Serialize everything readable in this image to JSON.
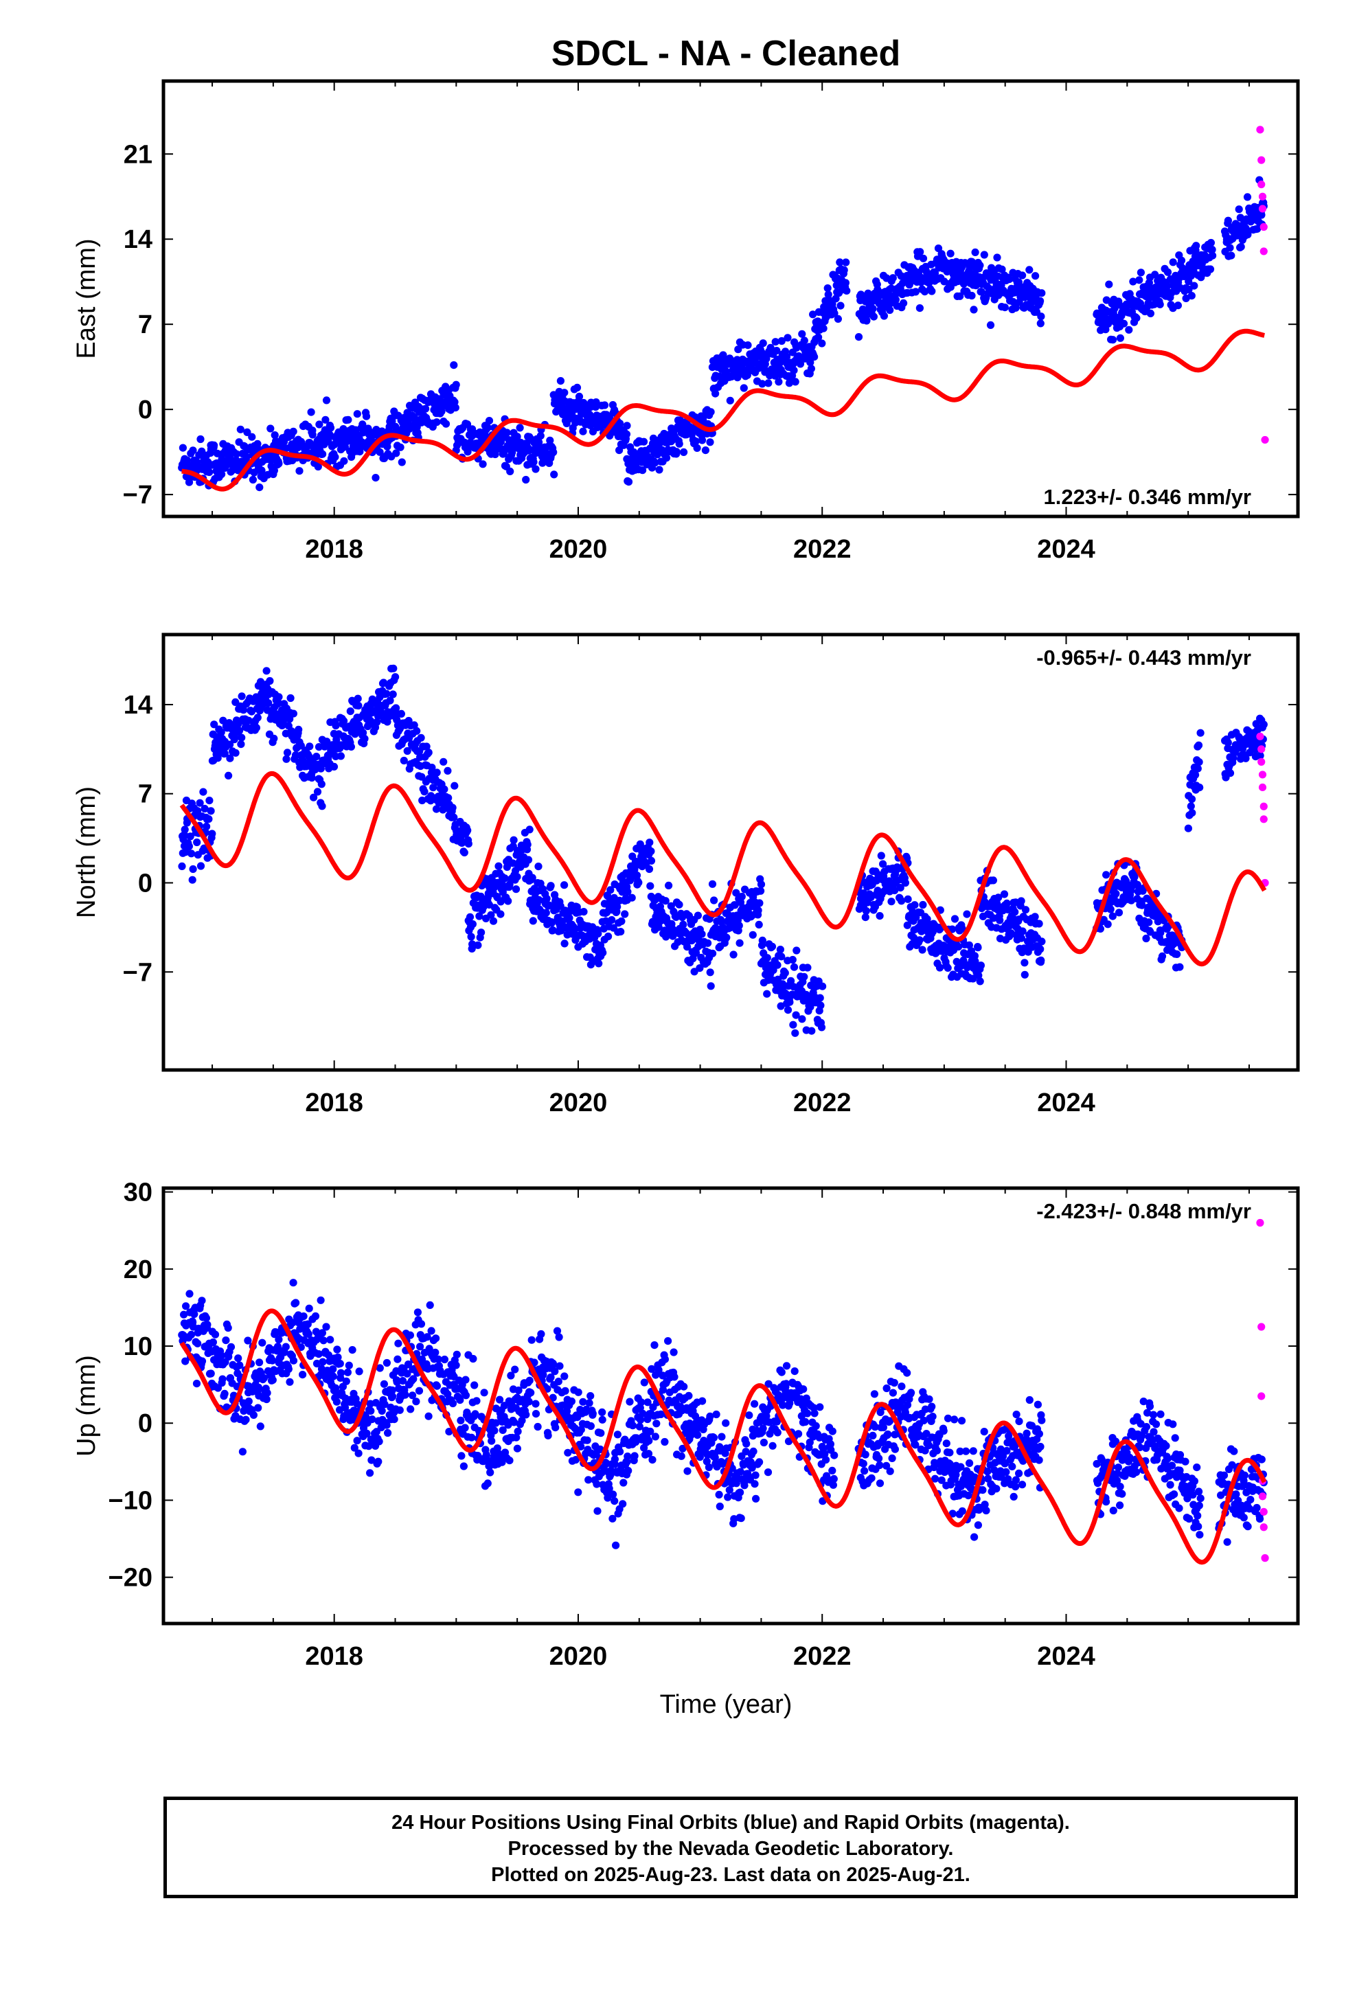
{
  "title": "SDCL  - NA - Cleaned",
  "xlabel": "Time (year)",
  "caption": {
    "line1": "24 Hour Positions Using Final Orbits (blue) and Rapid Orbits (magenta).",
    "line2": "Processed by the Nevada Geodetic Laboratory.",
    "line3": "Plotted on 2025-Aug-23. Last data on 2025-Aug-21."
  },
  "colors": {
    "final": "#0000ff",
    "rapid": "#ff00ff",
    "model": "#ff0000"
  },
  "chart_data": [
    {
      "type": "scatter",
      "name": "east",
      "ylabel": "East (mm)",
      "rate_label": "1.223+/- 0.346 mm/yr",
      "rate_position": "bottom-right",
      "xlim": [
        2016.6,
        2025.9
      ],
      "ylim": [
        -8.8,
        27.0
      ],
      "xticks": [
        2018,
        2020,
        2022,
        2024
      ],
      "yticks": [
        -7,
        0,
        7,
        14,
        21
      ],
      "model": {
        "rate": 1.223,
        "offset": 0.0,
        "t0": 2021.2,
        "annual": {
          "amp": 1.2,
          "phase": 0.0
        },
        "semiannual": {
          "amp": 0.4,
          "phase": 0.6
        }
      },
      "final_orbits_segments": [
        {
          "t": [
            2016.75,
            2017.5
          ],
          "y": [
            -4.5,
            -4.0
          ],
          "scatter": 1.6
        },
        {
          "t": [
            2017.5,
            2018.3
          ],
          "y": [
            -3.5,
            -2.0
          ],
          "scatter": 1.5
        },
        {
          "t": [
            2018.3,
            2019.0
          ],
          "y": [
            -3.0,
            1.0
          ],
          "scatter": 1.4
        },
        {
          "t": [
            2019.0,
            2019.8
          ],
          "y": [
            -2.5,
            -3.5
          ],
          "scatter": 1.5
        },
        {
          "t": [
            2019.8,
            2020.4
          ],
          "y": [
            0.5,
            -2.0
          ],
          "scatter": 1.3
        },
        {
          "t": [
            2020.4,
            2021.1
          ],
          "y": [
            -4.5,
            -1.0
          ],
          "scatter": 1.4
        },
        {
          "t": [
            2021.1,
            2021.9
          ],
          "y": [
            3.0,
            4.5
          ],
          "scatter": 1.5
        },
        {
          "t": [
            2021.9,
            2022.2
          ],
          "y": [
            5.0,
            11.5
          ],
          "scatter": 1.8
        },
        {
          "t": [
            2022.3,
            2023.0
          ],
          "y": [
            8.0,
            12.0
          ],
          "scatter": 1.4
        },
        {
          "t": [
            2023.0,
            2023.8
          ],
          "y": [
            11.5,
            9.0
          ],
          "scatter": 1.5
        },
        {
          "t": [
            2024.25,
            2024.8
          ],
          "y": [
            7.0,
            10.0
          ],
          "scatter": 1.4
        },
        {
          "t": [
            2024.8,
            2025.2
          ],
          "y": [
            10.0,
            13.0
          ],
          "scatter": 1.5
        },
        {
          "t": [
            2025.3,
            2025.62
          ],
          "y": [
            14.0,
            16.5
          ],
          "scatter": 1.3
        }
      ],
      "rapid_orbits": [
        {
          "t": 2025.59,
          "y": 23.0
        },
        {
          "t": 2025.6,
          "y": 20.5
        },
        {
          "t": 2025.6,
          "y": 18.5
        },
        {
          "t": 2025.61,
          "y": 17.5
        },
        {
          "t": 2025.61,
          "y": 16.5
        },
        {
          "t": 2025.62,
          "y": 15.0
        },
        {
          "t": 2025.62,
          "y": 13.0
        },
        {
          "t": 2025.63,
          "y": -2.5
        }
      ]
    },
    {
      "type": "scatter",
      "name": "north",
      "ylabel": "North (mm)",
      "rate_label": "-0.965+/- 0.443 mm/yr",
      "rate_position": "top-right",
      "xlim": [
        2016.6,
        2025.9
      ],
      "ylim": [
        -14.7,
        19.5
      ],
      "xticks": [
        2018,
        2020,
        2022,
        2024
      ],
      "yticks": [
        -7,
        0,
        7,
        14
      ],
      "model": {
        "rate": -0.965,
        "offset": 1.2,
        "t0": 2021.2,
        "annual": {
          "amp": 3.5,
          "phase": 0.0
        },
        "semiannual": {
          "amp": 0.8,
          "phase": 0.0
        }
      },
      "final_orbits_segments": [
        {
          "t": [
            2016.75,
            2017.0
          ],
          "y": [
            4.0,
            4.0
          ],
          "scatter": 2.0
        },
        {
          "t": [
            2017.0,
            2017.4
          ],
          "y": [
            10.5,
            14.0
          ],
          "scatter": 1.8
        },
        {
          "t": [
            2017.4,
            2017.9
          ],
          "y": [
            15.0,
            8.0
          ],
          "scatter": 1.7
        },
        {
          "t": [
            2017.9,
            2018.5
          ],
          "y": [
            10.0,
            15.0
          ],
          "scatter": 1.7
        },
        {
          "t": [
            2018.5,
            2019.1
          ],
          "y": [
            13.0,
            3.0
          ],
          "scatter": 1.8
        },
        {
          "t": [
            2019.1,
            2019.6
          ],
          "y": [
            -3.0,
            2.5
          ],
          "scatter": 1.8
        },
        {
          "t": [
            2019.6,
            2020.2
          ],
          "y": [
            -1.0,
            -5.0
          ],
          "scatter": 1.8
        },
        {
          "t": [
            2020.2,
            2020.6
          ],
          "y": [
            -3.0,
            2.5
          ],
          "scatter": 1.8
        },
        {
          "t": [
            2020.6,
            2021.1
          ],
          "y": [
            -2.0,
            -5.5
          ],
          "scatter": 1.7
        },
        {
          "t": [
            2021.1,
            2021.5
          ],
          "y": [
            -4.0,
            -1.5
          ],
          "scatter": 1.7
        },
        {
          "t": [
            2021.5,
            2022.0
          ],
          "y": [
            -6.0,
            -10.0
          ],
          "scatter": 2.0
        },
        {
          "t": [
            2022.3,
            2022.7
          ],
          "y": [
            -1.0,
            1.0
          ],
          "scatter": 1.8
        },
        {
          "t": [
            2022.7,
            2023.3
          ],
          "y": [
            -3.0,
            -6.5
          ],
          "scatter": 1.7
        },
        {
          "t": [
            2023.3,
            2023.8
          ],
          "y": [
            -1.0,
            -5.0
          ],
          "scatter": 1.8
        },
        {
          "t": [
            2024.25,
            2024.6
          ],
          "y": [
            -2.0,
            0.5
          ],
          "scatter": 1.6
        },
        {
          "t": [
            2024.6,
            2024.95
          ],
          "y": [
            -2.0,
            -5.0
          ],
          "scatter": 1.6
        },
        {
          "t": [
            2025.0,
            2025.1
          ],
          "y": [
            6.0,
            10.0
          ],
          "scatter": 2.0
        },
        {
          "t": [
            2025.3,
            2025.62
          ],
          "y": [
            10.0,
            11.5
          ],
          "scatter": 1.3
        }
      ],
      "rapid_orbits": [
        {
          "t": 2025.59,
          "y": 11.5
        },
        {
          "t": 2025.6,
          "y": 10.5
        },
        {
          "t": 2025.6,
          "y": 9.5
        },
        {
          "t": 2025.61,
          "y": 8.5
        },
        {
          "t": 2025.61,
          "y": 7.5
        },
        {
          "t": 2025.62,
          "y": 6.0
        },
        {
          "t": 2025.62,
          "y": 5.0
        },
        {
          "t": 2025.63,
          "y": 0.0
        }
      ]
    },
    {
      "type": "scatter",
      "name": "up",
      "ylabel": "Up (mm)",
      "rate_label": "-2.423+/- 0.848 mm/yr",
      "rate_position": "top-right",
      "xlim": [
        2016.6,
        2025.9
      ],
      "ylim": [
        -26.0,
        30.5
      ],
      "xticks": [
        2018,
        2020,
        2022,
        2024
      ],
      "yticks": [
        -20,
        -10,
        0,
        10,
        20,
        30
      ],
      "model": {
        "rate": -2.423,
        "offset": -1.5,
        "t0": 2021.2,
        "annual": {
          "amp": 6.5,
          "phase": 0.0
        },
        "semiannual": {
          "amp": 1.5,
          "phase": 0.0
        }
      },
      "final_orbits_segments": [
        {
          "t": [
            2016.75,
            2017.3
          ],
          "y": [
            14.0,
            3.0
          ],
          "scatter": 4.5
        },
        {
          "t": [
            2017.3,
            2017.7
          ],
          "y": [
            3.0,
            13.0
          ],
          "scatter": 4.5
        },
        {
          "t": [
            2017.7,
            2018.3
          ],
          "y": [
            13.0,
            -1.0
          ],
          "scatter": 4.5
        },
        {
          "t": [
            2018.3,
            2018.7
          ],
          "y": [
            -1.0,
            10.0
          ],
          "scatter": 4.5
        },
        {
          "t": [
            2018.7,
            2019.3
          ],
          "y": [
            10.0,
            -4.0
          ],
          "scatter": 4.5
        },
        {
          "t": [
            2019.3,
            2019.7
          ],
          "y": [
            -4.0,
            7.0
          ],
          "scatter": 4.5
        },
        {
          "t": [
            2019.7,
            2020.3
          ],
          "y": [
            7.0,
            -8.0
          ],
          "scatter": 5.0
        },
        {
          "t": [
            2020.3,
            2020.7
          ],
          "y": [
            -8.0,
            5.0
          ],
          "scatter": 4.5
        },
        {
          "t": [
            2020.7,
            2021.3
          ],
          "y": [
            5.0,
            -8.0
          ],
          "scatter": 4.5
        },
        {
          "t": [
            2021.3,
            2021.7
          ],
          "y": [
            -8.0,
            4.0
          ],
          "scatter": 4.5
        },
        {
          "t": [
            2021.7,
            2022.1
          ],
          "y": [
            4.0,
            -6.0
          ],
          "scatter": 4.5
        },
        {
          "t": [
            2022.3,
            2022.7
          ],
          "y": [
            -5.0,
            2.0
          ],
          "scatter": 4.5
        },
        {
          "t": [
            2022.7,
            2023.3
          ],
          "y": [
            2.0,
            -10.0
          ],
          "scatter": 4.5
        },
        {
          "t": [
            2023.3,
            2023.8
          ],
          "y": [
            -6.0,
            -2.0
          ],
          "scatter": 4.5
        },
        {
          "t": [
            2024.25,
            2024.7
          ],
          "y": [
            -8.0,
            -2.0
          ],
          "scatter": 4.0
        },
        {
          "t": [
            2024.7,
            2025.1
          ],
          "y": [
            -2.0,
            -11.0
          ],
          "scatter": 4.0
        },
        {
          "t": [
            2025.25,
            2025.62
          ],
          "y": [
            -10.0,
            -8.0
          ],
          "scatter": 4.0
        }
      ],
      "rapid_orbits": [
        {
          "t": 2025.59,
          "y": 26.0
        },
        {
          "t": 2025.6,
          "y": 12.5
        },
        {
          "t": 2025.6,
          "y": 3.5
        },
        {
          "t": 2025.61,
          "y": -7.5
        },
        {
          "t": 2025.61,
          "y": -9.5
        },
        {
          "t": 2025.62,
          "y": -11.5
        },
        {
          "t": 2025.62,
          "y": -13.5
        },
        {
          "t": 2025.63,
          "y": -17.5
        }
      ]
    }
  ]
}
